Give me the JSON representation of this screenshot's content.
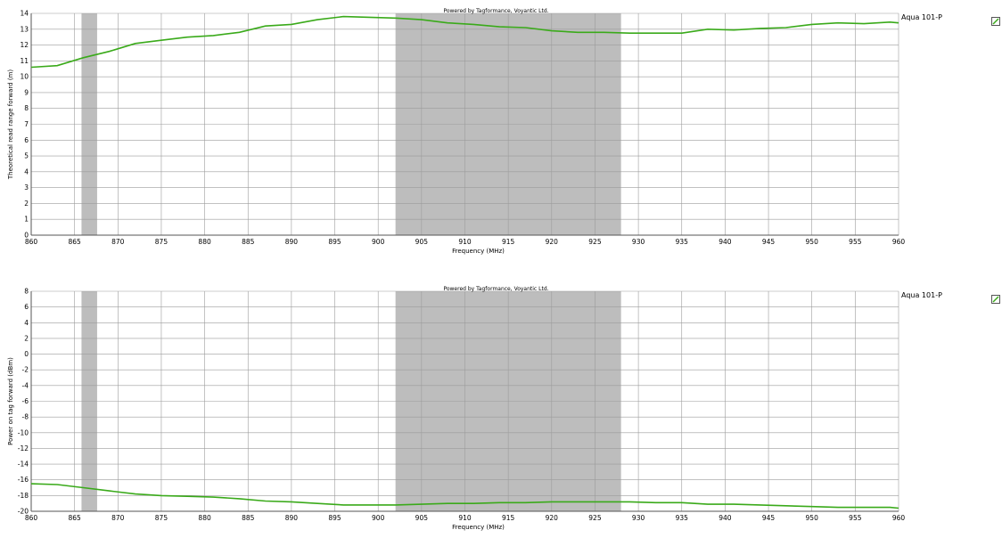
{
  "chart_data": [
    {
      "type": "line",
      "title": "Powered by Tagformance, Voyantic Ltd.",
      "xlabel": "Frequency (MHz)",
      "ylabel": "Theoretical read range forward (m)",
      "xlim": [
        860,
        960
      ],
      "ylim": [
        0,
        14
      ],
      "xticks": [
        860,
        865,
        870,
        875,
        880,
        885,
        890,
        895,
        900,
        905,
        910,
        915,
        920,
        925,
        930,
        935,
        940,
        945,
        950,
        955,
        960
      ],
      "yticks": [
        0,
        1,
        2,
        3,
        4,
        5,
        6,
        7,
        8,
        9,
        10,
        11,
        12,
        13,
        14
      ],
      "grid": true,
      "legend_position": "right",
      "shaded_bands": [
        {
          "from": 865.8,
          "to": 867.6
        },
        {
          "from": 902,
          "to": 928
        }
      ],
      "series": [
        {
          "name": "Aqua 101-P",
          "color": "#3aaa1a",
          "x": [
            860,
            863,
            866,
            869,
            872,
            875,
            878,
            881,
            884,
            887,
            890,
            893,
            896,
            899,
            902,
            905,
            908,
            911,
            914,
            917,
            920,
            923,
            926,
            929,
            932,
            935,
            938,
            941,
            944,
            947,
            950,
            953,
            956,
            959,
            960
          ],
          "y": [
            10.6,
            10.7,
            11.2,
            11.6,
            12.1,
            12.3,
            12.5,
            12.6,
            12.8,
            13.2,
            13.3,
            13.6,
            13.8,
            13.75,
            13.7,
            13.6,
            13.4,
            13.3,
            13.15,
            13.1,
            12.9,
            12.8,
            12.8,
            12.75,
            12.75,
            12.75,
            13.0,
            12.95,
            13.05,
            13.1,
            13.3,
            13.4,
            13.35,
            13.45,
            13.4
          ]
        }
      ]
    },
    {
      "type": "line",
      "title": "Powered by Tagformance, Voyantic Ltd.",
      "xlabel": "Frequency (MHz)",
      "ylabel": "Power on tag forward (dBm)",
      "xlim": [
        860,
        960
      ],
      "ylim": [
        -20,
        8
      ],
      "xticks": [
        860,
        865,
        870,
        875,
        880,
        885,
        890,
        895,
        900,
        905,
        910,
        915,
        920,
        925,
        930,
        935,
        940,
        945,
        950,
        955,
        960
      ],
      "yticks": [
        -20,
        -18,
        -16,
        -14,
        -12,
        -10,
        -8,
        -6,
        -4,
        -2,
        0,
        2,
        4,
        6,
        8
      ],
      "grid": true,
      "legend_position": "right",
      "shaded_bands": [
        {
          "from": 865.8,
          "to": 867.6
        },
        {
          "from": 902,
          "to": 928
        }
      ],
      "series": [
        {
          "name": "Aqua 101-P",
          "color": "#3aaa1a",
          "x": [
            860,
            863,
            866,
            869,
            872,
            875,
            878,
            881,
            884,
            887,
            890,
            893,
            896,
            899,
            902,
            905,
            908,
            911,
            914,
            917,
            920,
            923,
            926,
            929,
            932,
            935,
            938,
            941,
            944,
            947,
            950,
            953,
            956,
            959,
            960
          ],
          "y": [
            -16.5,
            -16.6,
            -17.0,
            -17.4,
            -17.8,
            -18.0,
            -18.1,
            -18.2,
            -18.4,
            -18.7,
            -18.8,
            -19.0,
            -19.2,
            -19.2,
            -19.2,
            -19.1,
            -19.0,
            -19.0,
            -18.9,
            -18.9,
            -18.8,
            -18.8,
            -18.8,
            -18.8,
            -18.9,
            -18.9,
            -19.1,
            -19.1,
            -19.2,
            -19.3,
            -19.4,
            -19.5,
            -19.5,
            -19.5,
            -19.6
          ]
        }
      ]
    }
  ],
  "legend_check_icon": "line-sample-check-icon"
}
